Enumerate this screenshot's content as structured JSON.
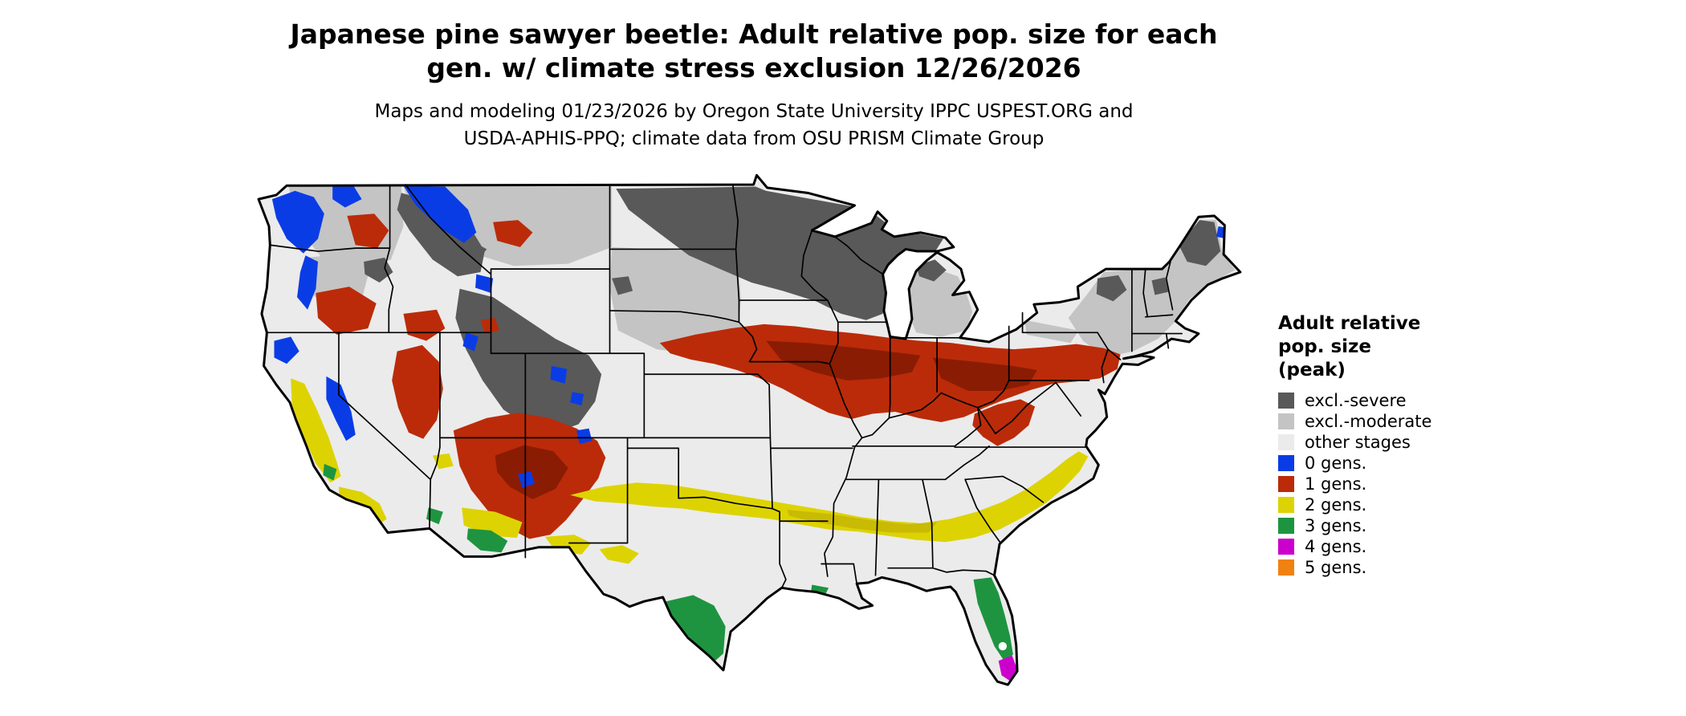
{
  "header": {
    "title_line1": "Japanese pine sawyer beetle: Adult relative pop. size for each",
    "title_line2": "gen. w/ climate stress exclusion 12/26/2026",
    "subtitle_line1": "Maps and modeling 01/23/2026 by Oregon State University IPPC USPEST.ORG and",
    "subtitle_line2": "USDA-APHIS-PPQ; climate data from OSU PRISM Climate Group"
  },
  "legend": {
    "title_lines": [
      "Adult relative",
      "pop. size",
      "(peak)"
    ],
    "items": [
      {
        "label": "excl.-severe",
        "color": "#595959"
      },
      {
        "label": "excl.-moderate",
        "color": "#c4c4c4"
      },
      {
        "label": "other stages",
        "color": "#ebebeb"
      },
      {
        "label": "0 gens.",
        "color": "#0a3ce6"
      },
      {
        "label": "1 gens.",
        "color": "#bb2b09"
      },
      {
        "label": "2 gens.",
        "color": "#ddd303"
      },
      {
        "label": "3 gens.",
        "color": "#1e9440"
      },
      {
        "label": "4 gens.",
        "color": "#cc00cc"
      },
      {
        "label": "5 gens.",
        "color": "#f08212"
      }
    ]
  },
  "map": {
    "name": "Contiguous United States generation map",
    "accent_colors": {
      "red_dark": "#8a1c03",
      "yellow_dark": "#c9ba04",
      "state_border": "#000000",
      "background": "#ffffff"
    }
  }
}
